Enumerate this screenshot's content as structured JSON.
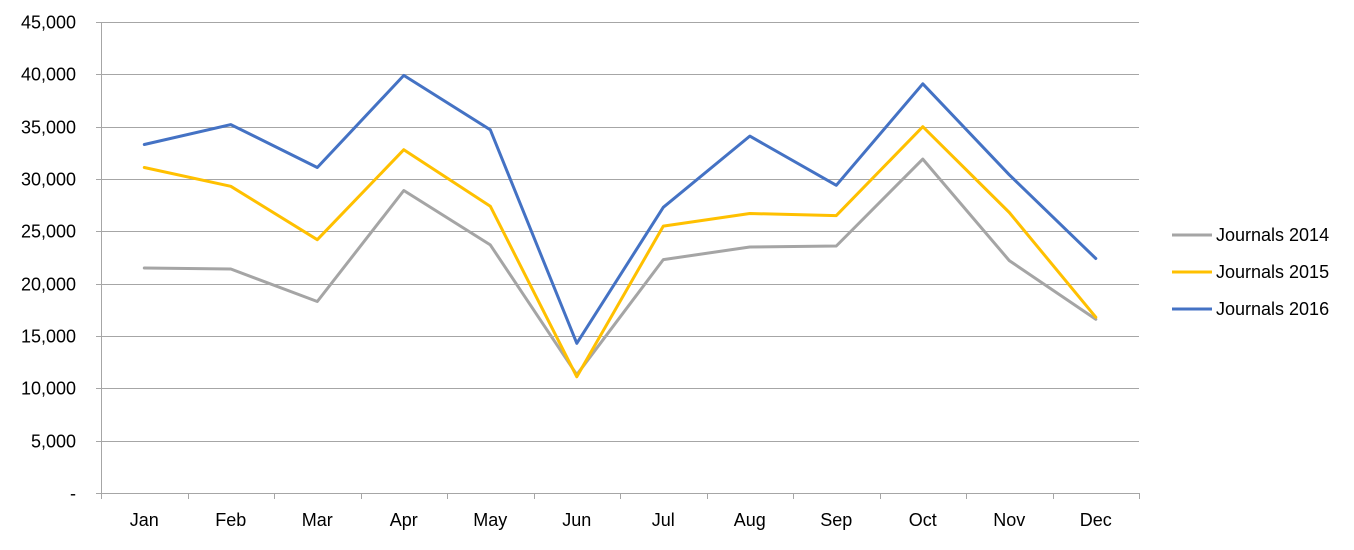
{
  "chart_data": {
    "type": "line",
    "title": "",
    "xlabel": "",
    "ylabel": "",
    "categories": [
      "Jan",
      "Feb",
      "Mar",
      "Apr",
      "May",
      "Jun",
      "Jul",
      "Aug",
      "Sep",
      "Oct",
      "Nov",
      "Dec"
    ],
    "ylim": [
      0,
      45000
    ],
    "y_ticks": [
      0,
      5000,
      10000,
      15000,
      20000,
      25000,
      30000,
      35000,
      40000,
      45000
    ],
    "y_tick_labels": [
      "-",
      "5,000",
      "10,000",
      "15,000",
      "20,000",
      "25,000",
      "30,000",
      "35,000",
      "40,000",
      "45,000"
    ],
    "grid": true,
    "legend_position": "right",
    "series": [
      {
        "name": "Journals 2014",
        "color": "#a5a5a5",
        "values": [
          21500,
          21400,
          18300,
          28900,
          23700,
          11300,
          22300,
          23500,
          23600,
          31900,
          22200,
          16600
        ]
      },
      {
        "name": "Journals 2015",
        "color": "#ffc000",
        "values": [
          31100,
          29300,
          24200,
          32800,
          27400,
          11100,
          25500,
          26700,
          26500,
          35000,
          26800,
          16800
        ]
      },
      {
        "name": "Journals 2016",
        "color": "#4472c4",
        "values": [
          33300,
          35200,
          31100,
          39900,
          34700,
          14300,
          27300,
          34100,
          29400,
          39100,
          30400,
          22400
        ]
      }
    ]
  }
}
